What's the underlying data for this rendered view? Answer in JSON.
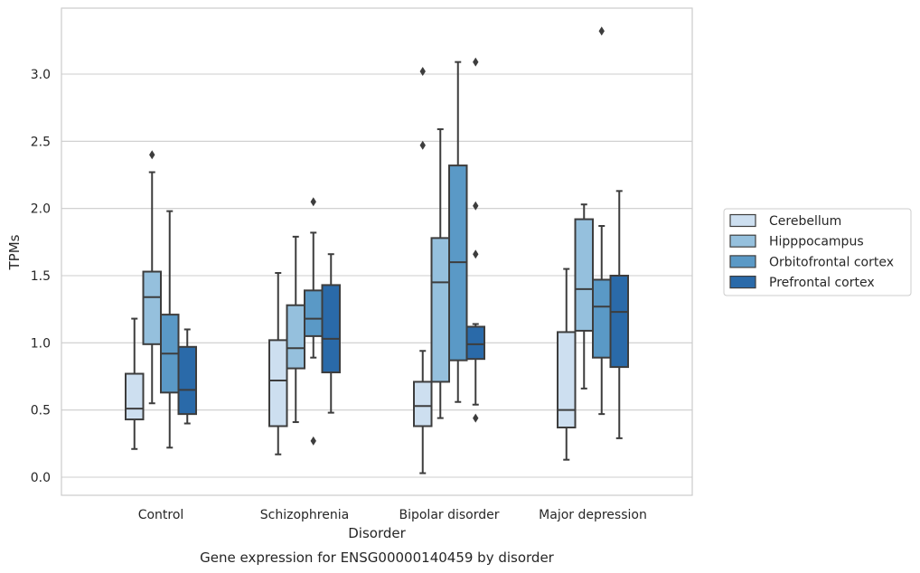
{
  "chart_data": {
    "type": "boxplot",
    "xlabel": "Disorder",
    "ylabel": "TPMs",
    "caption": "Gene expression for ENSG00000140459 by disorder",
    "categories": [
      "Control",
      "Schizophrenia",
      "Bipolar disorder",
      "Major depression"
    ],
    "ylim": [
      -0.13,
      3.5
    ],
    "yticks": [
      "0.0",
      "0.5",
      "1.0",
      "1.5",
      "2.0",
      "2.5",
      "3.0"
    ],
    "grid": "horizontal",
    "legend_position": "right",
    "series": [
      {
        "name": "Cerebellum",
        "color": "#cddff0",
        "boxes": [
          {
            "whislo": 0.21,
            "q1": 0.43,
            "med": 0.51,
            "q3": 0.77,
            "whishi": 1.18,
            "fliers": []
          },
          {
            "whislo": 0.17,
            "q1": 0.38,
            "med": 0.72,
            "q3": 1.02,
            "whishi": 1.52,
            "fliers": []
          },
          {
            "whislo": 0.03,
            "q1": 0.38,
            "med": 0.53,
            "q3": 0.71,
            "whishi": 0.94,
            "fliers": [
              2.47,
              3.02
            ]
          },
          {
            "whislo": 0.13,
            "q1": 0.37,
            "med": 0.5,
            "q3": 1.08,
            "whishi": 1.55,
            "fliers": []
          }
        ]
      },
      {
        "name": "Hipppocampus",
        "color": "#95c0dd",
        "boxes": [
          {
            "whislo": 0.55,
            "q1": 0.99,
            "med": 1.34,
            "q3": 1.53,
            "whishi": 2.27,
            "fliers": [
              2.4
            ]
          },
          {
            "whislo": 0.41,
            "q1": 0.81,
            "med": 0.96,
            "q3": 1.28,
            "whishi": 1.79,
            "fliers": []
          },
          {
            "whislo": 0.44,
            "q1": 0.71,
            "med": 1.45,
            "q3": 1.78,
            "whishi": 2.59,
            "fliers": []
          },
          {
            "whislo": 0.66,
            "q1": 1.09,
            "med": 1.4,
            "q3": 1.92,
            "whishi": 2.03,
            "fliers": []
          }
        ]
      },
      {
        "name": "Orbitofrontal cortex",
        "color": "#5a99c6",
        "boxes": [
          {
            "whislo": 0.22,
            "q1": 0.63,
            "med": 0.92,
            "q3": 1.21,
            "whishi": 1.98,
            "fliers": []
          },
          {
            "whislo": 0.89,
            "q1": 1.05,
            "med": 1.18,
            "q3": 1.39,
            "whishi": 1.82,
            "fliers": [
              0.27,
              2.05
            ]
          },
          {
            "whislo": 0.56,
            "q1": 0.87,
            "med": 1.6,
            "q3": 2.32,
            "whishi": 3.09,
            "fliers": []
          },
          {
            "whislo": 0.47,
            "q1": 0.89,
            "med": 1.27,
            "q3": 1.47,
            "whishi": 1.87,
            "fliers": [
              3.32
            ]
          }
        ]
      },
      {
        "name": "Prefrontal cortex",
        "color": "#2a6aa9",
        "boxes": [
          {
            "whislo": 0.4,
            "q1": 0.47,
            "med": 0.65,
            "q3": 0.97,
            "whishi": 1.1,
            "fliers": []
          },
          {
            "whislo": 0.48,
            "q1": 0.78,
            "med": 1.03,
            "q3": 1.43,
            "whishi": 1.66,
            "fliers": []
          },
          {
            "whislo": 0.54,
            "q1": 0.88,
            "med": 0.99,
            "q3": 1.12,
            "whishi": 1.14,
            "fliers": [
              0.44,
              1.66,
              2.02,
              3.09
            ]
          },
          {
            "whislo": 0.29,
            "q1": 0.82,
            "med": 1.23,
            "q3": 1.5,
            "whishi": 2.13,
            "fliers": []
          }
        ]
      }
    ]
  }
}
